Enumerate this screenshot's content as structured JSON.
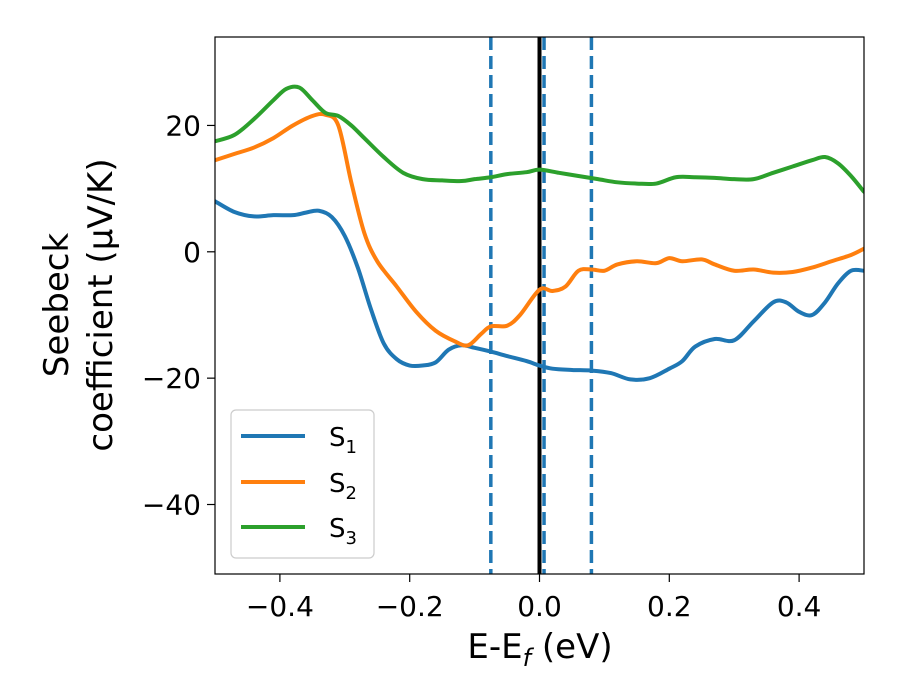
{
  "chart_data": {
    "type": "line",
    "xlabel_main": "E-E",
    "xlabel_sub": "f",
    "xlabel_unit": " (eV)",
    "ylabel_line1": "Seebeck",
    "ylabel_line2": "coefficient  (μV/K)",
    "xlim": [
      -0.5,
      0.5
    ],
    "ylim": [
      -51,
      34
    ],
    "xticks": [
      -0.4,
      -0.2,
      0.0,
      0.2,
      0.4
    ],
    "xtick_labels": [
      "−0.4",
      "−0.2",
      "0.0",
      "0.2",
      "0.4"
    ],
    "yticks": [
      20,
      0,
      -20,
      -40
    ],
    "ytick_labels": [
      "20",
      "0",
      "−20",
      "−40"
    ],
    "vlines": [
      {
        "x": -0.075,
        "style": "dashed",
        "color": "#1f77b4"
      },
      {
        "x": 0.007,
        "style": "dashed",
        "color": "#1f77b4"
      },
      {
        "x": 0.08,
        "style": "dashed",
        "color": "#1f77b4"
      },
      {
        "x": 0.0,
        "style": "solid",
        "color": "#000000"
      }
    ],
    "legend_position": "lower-left",
    "series": [
      {
        "name": "S1",
        "label_base": "S",
        "label_sub": "1",
        "color": "#1f77b4",
        "x": [
          -0.5,
          -0.47,
          -0.44,
          -0.41,
          -0.38,
          -0.36,
          -0.34,
          -0.32,
          -0.3,
          -0.28,
          -0.26,
          -0.24,
          -0.22,
          -0.2,
          -0.18,
          -0.16,
          -0.14,
          -0.12,
          -0.1,
          -0.075,
          -0.05,
          -0.02,
          0.0,
          0.02,
          0.05,
          0.08,
          0.11,
          0.14,
          0.17,
          0.2,
          0.22,
          0.24,
          0.27,
          0.3,
          0.33,
          0.36,
          0.38,
          0.4,
          0.42,
          0.44,
          0.46,
          0.48,
          0.5
        ],
        "y": [
          8,
          6.3,
          5.6,
          5.8,
          5.8,
          6.2,
          6.5,
          5.5,
          2.5,
          -2.5,
          -9,
          -14.5,
          -17,
          -18,
          -18,
          -17.5,
          -15.5,
          -14.8,
          -15.2,
          -15.8,
          -16.5,
          -17.3,
          -18,
          -18.5,
          -18.7,
          -18.8,
          -19.2,
          -20.2,
          -20,
          -18.5,
          -17.3,
          -15,
          -13.8,
          -14,
          -11,
          -8,
          -8,
          -9.5,
          -10,
          -8,
          -5,
          -3,
          -3
        ]
      },
      {
        "name": "S2",
        "label_base": "S",
        "label_sub": "2",
        "color": "#ff7f0e",
        "x": [
          -0.5,
          -0.47,
          -0.44,
          -0.41,
          -0.38,
          -0.35,
          -0.33,
          -0.31,
          -0.29,
          -0.27,
          -0.25,
          -0.22,
          -0.19,
          -0.16,
          -0.13,
          -0.11,
          -0.09,
          -0.075,
          -0.05,
          -0.03,
          0.0,
          0.02,
          0.04,
          0.06,
          0.08,
          0.1,
          0.12,
          0.15,
          0.18,
          0.2,
          0.22,
          0.25,
          0.27,
          0.3,
          0.33,
          0.36,
          0.39,
          0.42,
          0.45,
          0.48,
          0.5
        ],
        "y": [
          14.5,
          15.5,
          16.5,
          18,
          20,
          21.5,
          21.7,
          20,
          11,
          3,
          -1.5,
          -5.5,
          -9.5,
          -12.5,
          -14.2,
          -14.8,
          -13,
          -11.8,
          -11.7,
          -10,
          -6,
          -6.2,
          -5.5,
          -3,
          -2.8,
          -3,
          -2,
          -1.5,
          -1.8,
          -1,
          -1.5,
          -1.2,
          -2,
          -3,
          -2.8,
          -3.3,
          -3.2,
          -2.5,
          -1.5,
          -0.5,
          0.5
        ]
      },
      {
        "name": "S3",
        "label_base": "S",
        "label_sub": "3",
        "color": "#2ca02c",
        "x": [
          -0.5,
          -0.47,
          -0.44,
          -0.41,
          -0.39,
          -0.37,
          -0.35,
          -0.33,
          -0.31,
          -0.29,
          -0.27,
          -0.24,
          -0.21,
          -0.18,
          -0.15,
          -0.12,
          -0.1,
          -0.075,
          -0.05,
          -0.02,
          0.0,
          0.03,
          0.06,
          0.09,
          0.12,
          0.15,
          0.18,
          0.21,
          0.24,
          0.27,
          0.3,
          0.33,
          0.36,
          0.39,
          0.42,
          0.44,
          0.46,
          0.48,
          0.5
        ],
        "y": [
          17.5,
          18.5,
          21,
          24,
          25.8,
          26,
          24,
          22,
          21.5,
          20,
          18,
          15,
          12.5,
          11.5,
          11.3,
          11.2,
          11.5,
          11.8,
          12.3,
          12.6,
          13,
          12.5,
          12,
          11.5,
          11,
          10.8,
          10.8,
          11.8,
          11.8,
          11.7,
          11.5,
          11.5,
          12.5,
          13.5,
          14.5,
          15,
          14,
          12,
          9.5
        ]
      }
    ]
  }
}
